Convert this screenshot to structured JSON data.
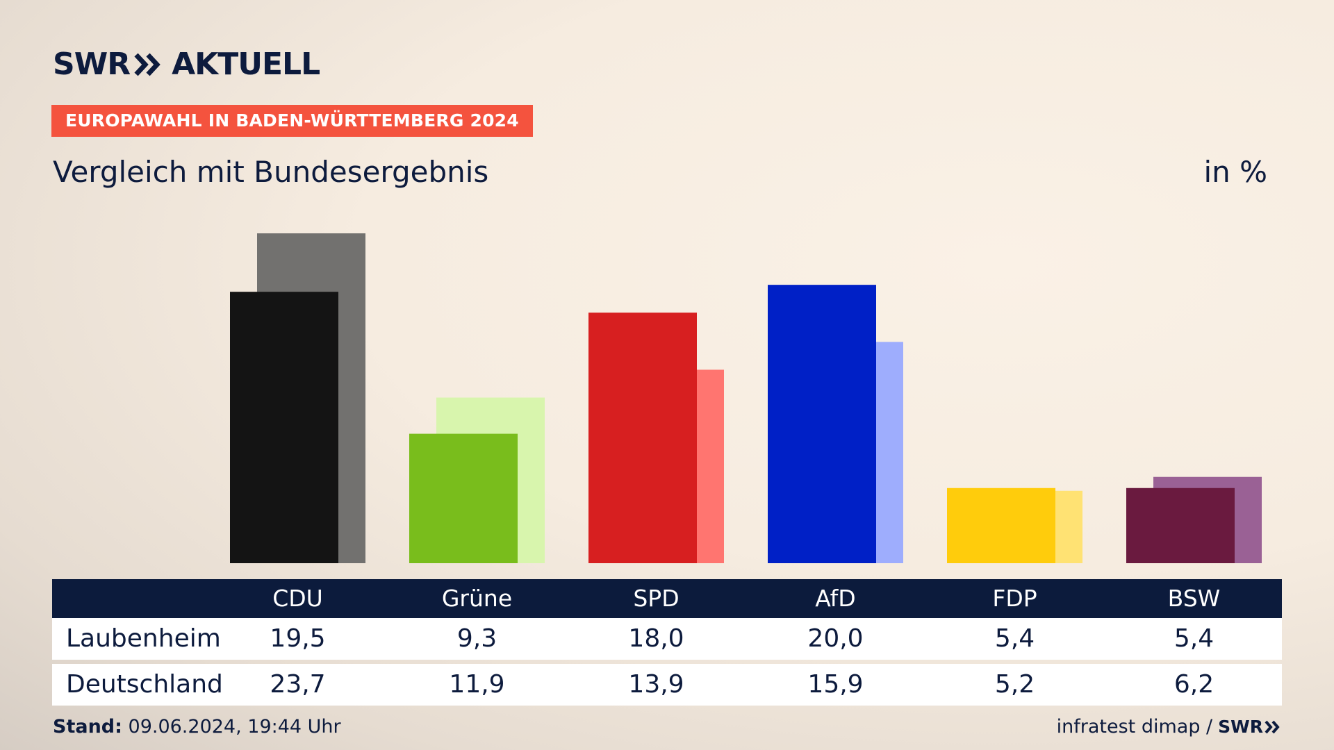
{
  "header": {
    "logo_text_left": "SWR",
    "logo_text_right": "AKTUELL",
    "badge": "EUROPAWAHL IN BADEN-WÜRTTEMBERG 2024",
    "subtitle": "Vergleich mit Bundesergebnis",
    "unit": "in %"
  },
  "table": {
    "rows": [
      {
        "label": "Laubenheim",
        "values": [
          "19,5",
          "9,3",
          "18,0",
          "20,0",
          "5,4",
          "5,4"
        ]
      },
      {
        "label": "Deutschland",
        "values": [
          "23,7",
          "11,9",
          "13,9",
          "15,9",
          "5,2",
          "6,2"
        ]
      }
    ]
  },
  "footer": {
    "stand_label": "Stand:",
    "stand_value": "09.06.2024, 19:44 Uhr",
    "source": "infratest dimap /",
    "source_logo": "SWR"
  },
  "chart_data": {
    "type": "bar",
    "categories": [
      "CDU",
      "Grüne",
      "SPD",
      "AfD",
      "FDP",
      "BSW"
    ],
    "series": [
      {
        "name": "Laubenheim",
        "values": [
          19.5,
          9.3,
          18.0,
          20.0,
          5.4,
          5.4
        ],
        "colors": [
          "#141414",
          "#79bd1c",
          "#d71f20",
          "#0020c6",
          "#ffcc0c",
          "#6a1a3f"
        ]
      },
      {
        "name": "Deutschland",
        "values": [
          23.7,
          11.9,
          13.9,
          15.9,
          5.2,
          6.2
        ],
        "colors": [
          "#72716f",
          "#d8f5ad",
          "#ff7570",
          "#9eadfd",
          "#ffe273",
          "#9a6195"
        ]
      }
    ],
    "ylim": [
      0,
      23.7
    ],
    "grid": false,
    "legend": "table-below"
  }
}
